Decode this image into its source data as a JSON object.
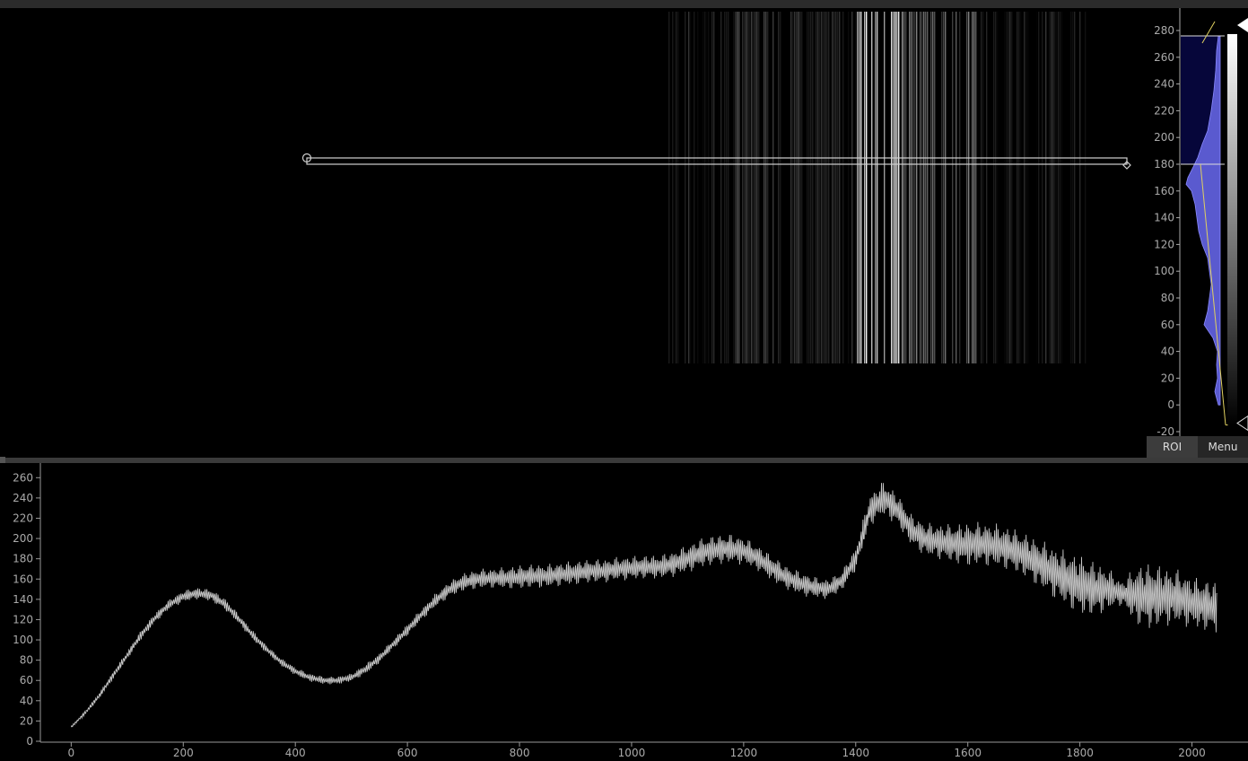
{
  "image_view": {
    "name": "image-display",
    "roi_line": {
      "x_start": 425,
      "x_end": 1880,
      "y": 180
    }
  },
  "histogram": {
    "axis_ticks": [
      "280",
      "260",
      "240",
      "220",
      "200",
      "180",
      "160",
      "140",
      "120",
      "100",
      "80",
      "60",
      "40",
      "20",
      "0",
      "-20"
    ],
    "level_max": 276,
    "level_min": -15,
    "region_upper": 180,
    "fill_color": "#5a5acf",
    "dark_fill_color": "#06063a",
    "colors": {
      "axis": "#aaaaaa",
      "line": "#e0d060"
    }
  },
  "buttons": {
    "roi_label": "ROI",
    "menu_label": "Menu"
  },
  "chart_data": {
    "type": "line",
    "title": "",
    "xlabel": "",
    "ylabel": "",
    "x_ticks": [
      "0",
      "200",
      "400",
      "600",
      "800",
      "1000",
      "1200",
      "1400",
      "1600",
      "1800",
      "2000"
    ],
    "y_ticks": [
      "0",
      "20",
      "40",
      "60",
      "80",
      "100",
      "120",
      "140",
      "160",
      "180",
      "200",
      "220",
      "240",
      "260"
    ],
    "xlim": [
      -55,
      2100
    ],
    "ylim": [
      0,
      270
    ],
    "color": "#c8c8c8",
    "series": [
      {
        "x": [
          0,
          25,
          50,
          75,
          100,
          125,
          150,
          175,
          200,
          225,
          250,
          275,
          300,
          325,
          350,
          375,
          400,
          425,
          450,
          475,
          500,
          525,
          550,
          575,
          600,
          625,
          650,
          675,
          700,
          725,
          750,
          775,
          800,
          825,
          850,
          875,
          900,
          925,
          950,
          975,
          1000,
          1025,
          1050,
          1075,
          1100,
          1125,
          1150,
          1175,
          1200,
          1225,
          1250,
          1275,
          1300,
          1325,
          1350,
          1375,
          1400,
          1425,
          1450,
          1475,
          1500,
          1525,
          1550,
          1575,
          1600,
          1625,
          1650,
          1675,
          1700,
          1725,
          1750,
          1775,
          1800,
          1825,
          1850,
          1875,
          1900,
          1925,
          1950,
          1975,
          2000,
          2025,
          2045
        ],
        "y": [
          14,
          28,
          45,
          65,
          85,
          105,
          122,
          135,
          143,
          146,
          144,
          135,
          120,
          104,
          90,
          78,
          69,
          63,
          60,
          60,
          63,
          71,
          82,
          96,
          110,
          125,
          139,
          150,
          157,
          160,
          161,
          161,
          162,
          163,
          163,
          165,
          166,
          168,
          168,
          170,
          171,
          172,
          172,
          175,
          180,
          186,
          189,
          190,
          188,
          181,
          171,
          162,
          156,
          152,
          150,
          158,
          180,
          228,
          240,
          228,
          208,
          199,
          197,
          195,
          194,
          195,
          193,
          190,
          184,
          176,
          168,
          160,
          154,
          150,
          150,
          146,
          144,
          143,
          143,
          142,
          137,
          134,
          132
        ],
        "amp": [
          1,
          2,
          3,
          4,
          4,
          5,
          5,
          5,
          6,
          6,
          6,
          6,
          5,
          5,
          4,
          4,
          4,
          4,
          4,
          4,
          4,
          5,
          5,
          5,
          6,
          6,
          7,
          8,
          9,
          10,
          10,
          11,
          12,
          12,
          12,
          12,
          12,
          12,
          12,
          12,
          12,
          12,
          12,
          13,
          14,
          15,
          15,
          15,
          14,
          13,
          13,
          12,
          12,
          11,
          10,
          10,
          12,
          16,
          18,
          16,
          16,
          17,
          18,
          20,
          22,
          22,
          22,
          22,
          22,
          24,
          26,
          28,
          30,
          28,
          22,
          12,
          30,
          34,
          30,
          28,
          26,
          26,
          26
        ]
      }
    ]
  }
}
